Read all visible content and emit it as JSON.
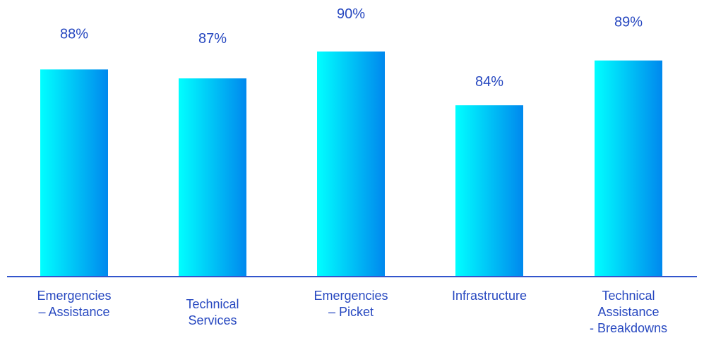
{
  "colors": {
    "bar_light": "#00FFFF",
    "bar_dark": "#0088EE",
    "text": "#2748C0",
    "axis": "#3355CC"
  },
  "chart_data": {
    "type": "bar",
    "title": "",
    "xlabel": "",
    "ylabel": "",
    "categories": [
      [
        "Emergencies",
        "– Assistance"
      ],
      [
        "Technical",
        "Services"
      ],
      [
        "Emergencies",
        "– Picket"
      ],
      [
        "Infrastructure"
      ],
      [
        "Technical",
        "Assistance",
        "- Breakdowns"
      ]
    ],
    "values": [
      88,
      87,
      90,
      84,
      89
    ],
    "value_labels": [
      "88%",
      "87%",
      "90%",
      "84%",
      "89%"
    ],
    "grid": false,
    "legend": "none"
  }
}
